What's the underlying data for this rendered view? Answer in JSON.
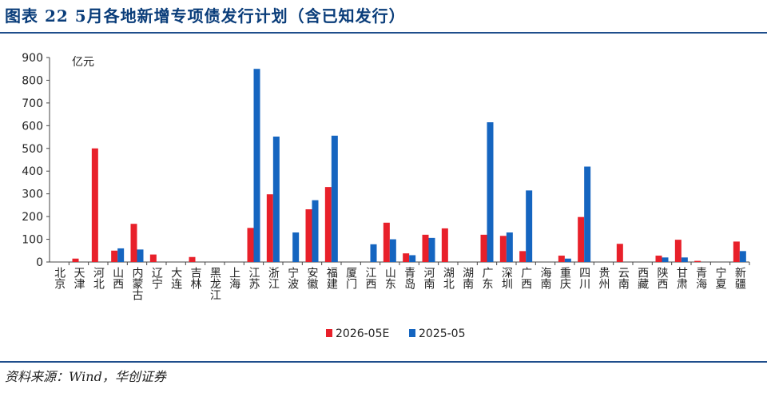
{
  "title": "图表 22   5月各地新增专项债发行计划（含已知发行）",
  "source": "资料来源：Wind，华创证券",
  "colors": {
    "series_a": "#e8202a",
    "series_b": "#1565c0",
    "rule": "#1f4e8c"
  },
  "chart_data": {
    "type": "bar",
    "unit": "亿元",
    "ylim": [
      0,
      900
    ],
    "yticks": [
      0,
      100,
      200,
      300,
      400,
      500,
      600,
      700,
      800,
      900
    ],
    "legend_position": "bottom-center",
    "grid": false,
    "categories": [
      "北京",
      "天津",
      "河北",
      "山西",
      "内蒙古",
      "辽宁",
      "大连",
      "吉林",
      "黑龙江",
      "上海",
      "江苏",
      "浙江",
      "宁波",
      "安徽",
      "福建",
      "厦门",
      "江西",
      "山东",
      "青岛",
      "河南",
      "湖北",
      "湖南",
      "广东",
      "深圳",
      "广西",
      "海南",
      "重庆",
      "四川",
      "贵州",
      "云南",
      "西藏",
      "陕西",
      "甘肃",
      "青海",
      "宁夏",
      "新疆"
    ],
    "series": [
      {
        "name": "2026-05E",
        "values": [
          0,
          15,
          500,
          50,
          168,
          33,
          0,
          22,
          0,
          0,
          150,
          298,
          0,
          232,
          330,
          0,
          0,
          173,
          38,
          120,
          148,
          0,
          120,
          115,
          48,
          0,
          28,
          198,
          0,
          80,
          0,
          28,
          98,
          5,
          0,
          90
        ]
      },
      {
        "name": "2025-05",
        "values": [
          0,
          0,
          0,
          60,
          55,
          0,
          0,
          0,
          0,
          0,
          850,
          552,
          130,
          272,
          556,
          0,
          78,
          100,
          30,
          106,
          0,
          0,
          615,
          130,
          315,
          0,
          15,
          420,
          0,
          0,
          0,
          20,
          20,
          0,
          0,
          48
        ]
      }
    ]
  }
}
